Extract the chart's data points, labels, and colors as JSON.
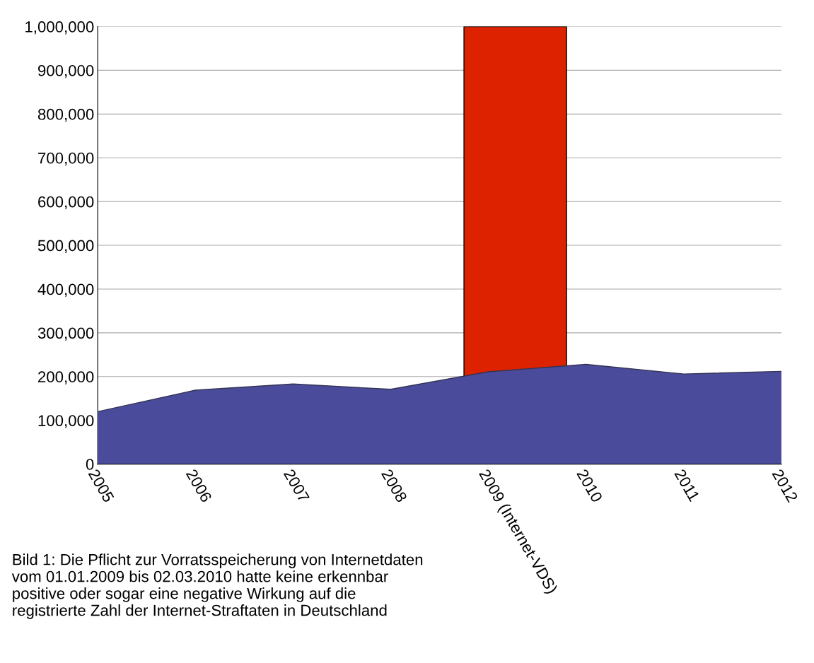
{
  "chart_data": {
    "type": "area",
    "x": [
      2005,
      2006,
      2007,
      2008,
      2009,
      2010,
      2011,
      2012
    ],
    "series": [
      {
        "color": "#4b4b9c",
        "values": [
          120000,
          169000,
          183000,
          171000,
          211000,
          228000,
          206000,
          212000
        ]
      }
    ],
    "xlim": [
      2005,
      2012
    ],
    "xticks": [
      2005,
      2006,
      2007,
      2008,
      {
        "value": 2009,
        "label": "2009 (Internet-VDS)"
      },
      2010,
      2011,
      2012
    ],
    "ylim": [
      0,
      1000000
    ],
    "yticks": [
      {
        "value": 0,
        "label": "0"
      },
      {
        "value": 100000,
        "label": "100,000"
      },
      {
        "value": 200000,
        "label": "200,000"
      },
      {
        "value": 300000,
        "label": "300,000"
      },
      {
        "value": 400000,
        "label": "400,000"
      },
      {
        "value": 500000,
        "label": "500,000"
      },
      {
        "value": 600000,
        "label": "600,000"
      },
      {
        "value": 700000,
        "label": "700,000"
      },
      {
        "value": 800000,
        "label": "800,000"
      },
      {
        "value": 900000,
        "label": "900,000"
      },
      {
        "value": 1000000,
        "label": "1,000,000"
      }
    ],
    "grid": "y",
    "bands": [
      {
        "axis": "x",
        "from": 2008.75,
        "to": 2009.8,
        "color": "#dd2200"
      }
    ],
    "annotations": [
      "Bild 1: Die Pflicht zur Vorratsspeicherung von Internetdaten vom 01.01.2009 bis 02.03.2010 hatte keine erkennbar positive oder sogar eine negative Wirkung auf die registrierte Zahl der Internet-Straftaten in Deutschland"
    ]
  }
}
